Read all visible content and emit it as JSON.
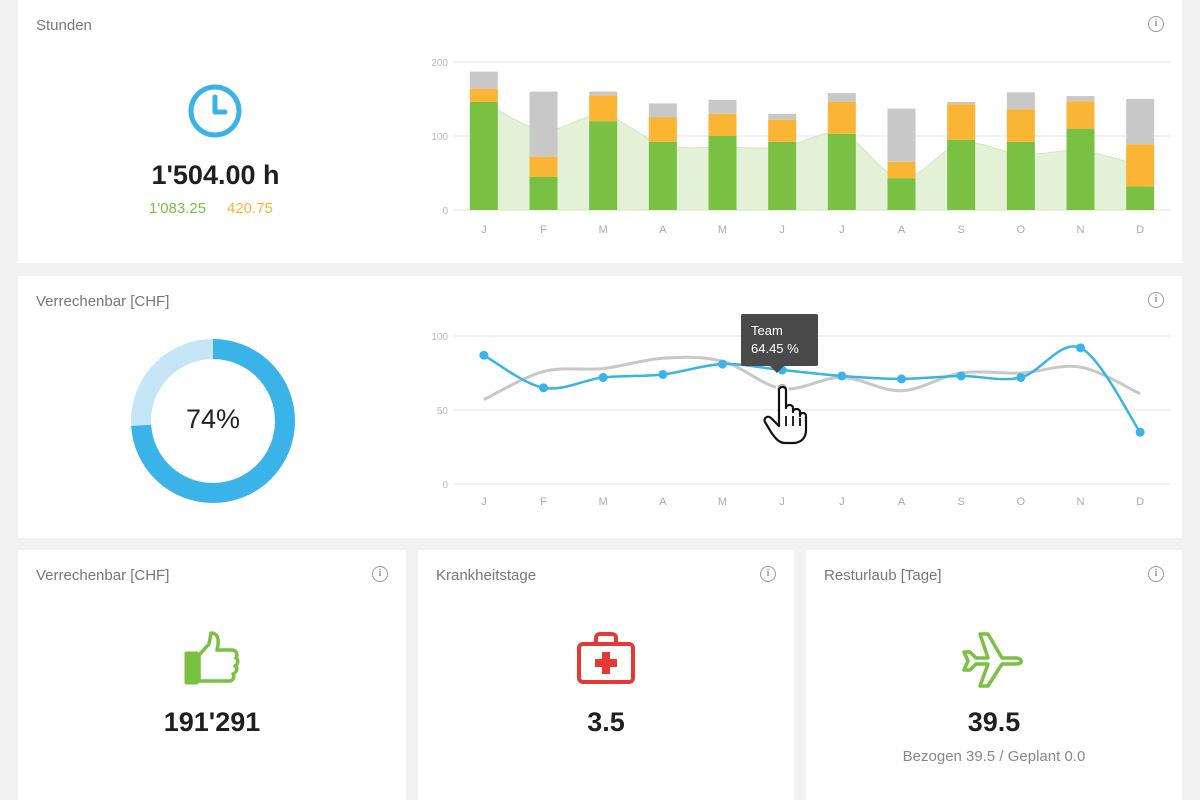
{
  "colors": {
    "green": "#7ac143",
    "orange": "#fbb534",
    "gray": "#c8c8c8",
    "blue": "#3ab3e8",
    "red": "#e53935",
    "lightBlue": "#c5e6f7"
  },
  "hours_card": {
    "title": "Stunden",
    "icon": "clock-icon",
    "total": "1'504.00 h",
    "green_value": "1'083.25",
    "orange_value": "420.75",
    "info_icon": "info-icon"
  },
  "billable_card": {
    "title": "Verrechenbar [CHF]",
    "percent_label": "74%",
    "percent": 74,
    "info_icon": "info-icon",
    "tooltip": {
      "series": "Team",
      "value": "64.45 %"
    }
  },
  "bottom_cards": [
    {
      "title": "Verrechenbar [CHF]",
      "icon": "thumbs-up-icon",
      "value": "191'291",
      "caption": ""
    },
    {
      "title": "Krankheitstage",
      "icon": "first-aid-kit-icon",
      "value": "3.5",
      "caption": ""
    },
    {
      "title": "Resturlaub [Tage]",
      "icon": "airplane-icon",
      "value": "39.5",
      "caption": "Bezogen 39.5 / Geplant 0.0"
    }
  ],
  "chart_data": [
    {
      "type": "bar",
      "categories": [
        "J",
        "F",
        "M",
        "A",
        "M",
        "J",
        "J",
        "A",
        "S",
        "O",
        "N",
        "D"
      ],
      "ylim": [
        0,
        200
      ],
      "yticks": [
        "0",
        "100",
        "200"
      ],
      "series": [
        {
          "values": [
            146,
            45,
            120,
            92,
            100,
            92,
            103,
            43,
            95,
            92,
            110,
            32
          ]
        },
        {
          "values": [
            18,
            27,
            35,
            33,
            30,
            30,
            43,
            22,
            48,
            44,
            37,
            57
          ]
        },
        {
          "values": [
            23,
            88,
            5,
            19,
            19,
            8,
            12,
            72,
            3,
            23,
            7,
            61
          ]
        }
      ],
      "area": [
        146,
        108,
        128,
        88,
        85,
        85,
        103,
        43,
        90,
        75,
        80,
        60
      ],
      "stacked": true,
      "grid": true
    },
    {
      "type": "line",
      "categories": [
        "J",
        "F",
        "M",
        "A",
        "M",
        "J",
        "J",
        "A",
        "S",
        "O",
        "N",
        "D"
      ],
      "ylim": [
        0,
        100
      ],
      "yticks": [
        "0",
        "50",
        "100"
      ],
      "series": [
        {
          "values": [
            87,
            65,
            72,
            74,
            81,
            77,
            73,
            71,
            73,
            72,
            92,
            35
          ]
        },
        {
          "values": [
            57,
            76,
            78,
            85,
            83,
            64.45,
            72,
            63,
            75,
            75,
            79,
            61
          ]
        }
      ],
      "grid": true
    }
  ]
}
